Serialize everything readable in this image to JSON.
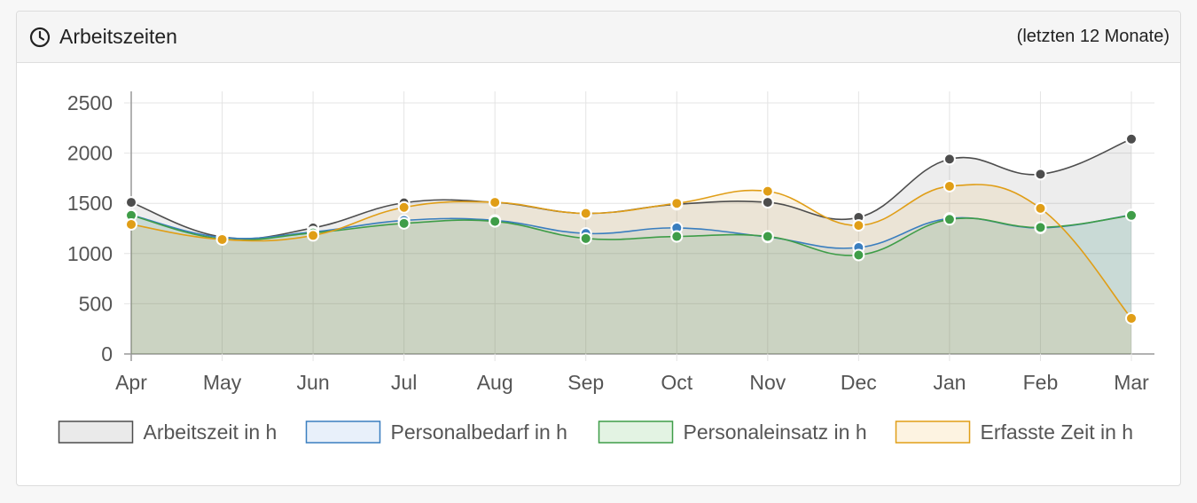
{
  "panel": {
    "icon": "clock-icon",
    "title": "Arbeitszeiten",
    "subtitle": "(letzten 12 Monate)"
  },
  "chart_data": {
    "type": "area",
    "categories": [
      "Apr",
      "May",
      "Jun",
      "Jul",
      "Aug",
      "Sep",
      "Oct",
      "Nov",
      "Dec",
      "Jan",
      "Feb",
      "Mar"
    ],
    "ylim": [
      0,
      2500
    ],
    "yticks": [
      0,
      500,
      1000,
      1500,
      2000,
      2500
    ],
    "grid": true,
    "legend_position": "bottom",
    "series": [
      {
        "name": "Arbeitszeit in h",
        "color": "#4d4d4d",
        "fill": "#eaeaea",
        "values": [
          1510,
          1165,
          1255,
          1505,
          1510,
          1400,
          1490,
          1510,
          1360,
          1940,
          1790,
          2140
        ]
      },
      {
        "name": "Personalbedarf in h",
        "color": "#3a7ebf",
        "fill": "#e8f0fa",
        "values": [
          1385,
          1160,
          1215,
          1330,
          1330,
          1200,
          1255,
          1165,
          1060,
          1350,
          1255,
          1385
        ]
      },
      {
        "name": "Personaleinsatz in h",
        "color": "#3f9d48",
        "fill": "#e3f3e3",
        "values": [
          1380,
          1145,
          1205,
          1300,
          1320,
          1150,
          1170,
          1170,
          985,
          1340,
          1260,
          1380
        ]
      },
      {
        "name": "Erfasste Zeit in h",
        "color": "#e09e17",
        "fill": "#fdf3e1",
        "values": [
          1290,
          1140,
          1180,
          1460,
          1510,
          1400,
          1500,
          1620,
          1280,
          1670,
          1450,
          355
        ]
      }
    ]
  }
}
